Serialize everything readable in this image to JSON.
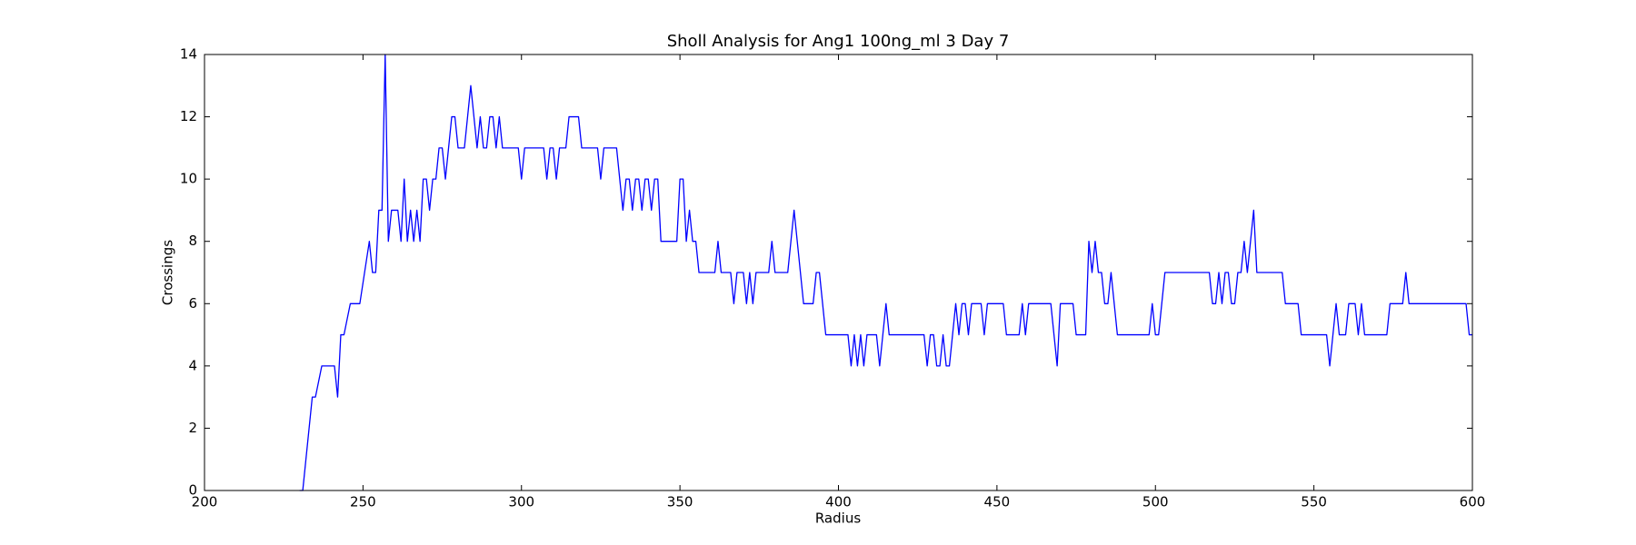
{
  "chart_data": {
    "type": "line",
    "title": "Sholl Analysis for Ang1 100ng_ml 3 Day 7",
    "xlabel": "Radius",
    "ylabel": "Crossings",
    "color": "#0000ff",
    "x": [
      230,
      231,
      234,
      235,
      237,
      241,
      242,
      243,
      244,
      246,
      249,
      252,
      253,
      254,
      255,
      256,
      257,
      258,
      259,
      261,
      262,
      263,
      264,
      265,
      266,
      267,
      268,
      269,
      270,
      271,
      272,
      273,
      274,
      275,
      276,
      277,
      278,
      279,
      280,
      282,
      283,
      284,
      285,
      286,
      287,
      288,
      289,
      290,
      291,
      292,
      293,
      294,
      299,
      300,
      301,
      307,
      308,
      309,
      310,
      311,
      312,
      314,
      315,
      318,
      319,
      324,
      325,
      326,
      330,
      331,
      332,
      333,
      334,
      335,
      336,
      337,
      338,
      339,
      340,
      341,
      342,
      343,
      344,
      349,
      350,
      351,
      352,
      353,
      354,
      355,
      356,
      361,
      362,
      363,
      366,
      367,
      368,
      370,
      371,
      372,
      373,
      374,
      378,
      379,
      380,
      384,
      385,
      386,
      389,
      392,
      393,
      394,
      396,
      403,
      404,
      405,
      406,
      407,
      408,
      409,
      412,
      413,
      414,
      415,
      416,
      427,
      428,
      429,
      430,
      431,
      432,
      433,
      434,
      435,
      436,
      437,
      438,
      439,
      440,
      441,
      442,
      445,
      446,
      447,
      452,
      453,
      457,
      458,
      459,
      460,
      467,
      469,
      470,
      474,
      475,
      478,
      479,
      480,
      481,
      482,
      483,
      484,
      485,
      486,
      488,
      498,
      499,
      500,
      501,
      503,
      517,
      518,
      519,
      520,
      521,
      522,
      523,
      524,
      525,
      526,
      527,
      528,
      529,
      530,
      531,
      532,
      540,
      541,
      545,
      546,
      554,
      555,
      556,
      557,
      558,
      560,
      561,
      563,
      564,
      565,
      566,
      573,
      574,
      578,
      579,
      580,
      598,
      599,
      600
    ],
    "values": [
      0,
      0,
      3,
      3,
      4,
      4,
      3,
      5,
      5,
      6,
      6,
      8,
      7,
      7,
      9,
      9,
      14,
      8,
      9,
      9,
      8,
      10,
      8,
      9,
      8,
      9,
      8,
      10,
      10,
      9,
      10,
      10,
      11,
      11,
      10,
      11,
      12,
      12,
      11,
      11,
      12,
      13,
      12,
      11,
      12,
      11,
      11,
      12,
      12,
      11,
      12,
      11,
      11,
      10,
      11,
      11,
      10,
      11,
      11,
      10,
      11,
      11,
      12,
      12,
      11,
      11,
      10,
      11,
      11,
      10,
      9,
      10,
      10,
      9,
      10,
      10,
      9,
      10,
      10,
      9,
      10,
      10,
      8,
      8,
      10,
      10,
      8,
      9,
      8,
      8,
      7,
      7,
      8,
      7,
      7,
      6,
      7,
      7,
      6,
      7,
      6,
      7,
      7,
      8,
      7,
      7,
      8,
      9,
      6,
      6,
      7,
      7,
      5,
      5,
      4,
      5,
      4,
      5,
      4,
      5,
      5,
      4,
      5,
      6,
      5,
      5,
      4,
      5,
      5,
      4,
      4,
      5,
      4,
      4,
      5,
      6,
      5,
      6,
      6,
      5,
      6,
      6,
      5,
      6,
      6,
      5,
      5,
      6,
      5,
      6,
      6,
      4,
      6,
      6,
      5,
      5,
      8,
      7,
      8,
      7,
      7,
      6,
      6,
      7,
      5,
      5,
      6,
      5,
      5,
      7,
      7,
      6,
      6,
      7,
      6,
      7,
      7,
      6,
      6,
      7,
      7,
      8,
      7,
      8,
      9,
      7,
      7,
      6,
      6,
      5,
      5,
      4,
      5,
      6,
      5,
      5,
      6,
      6,
      5,
      6,
      5,
      5,
      6,
      6,
      7,
      6,
      6,
      5,
      5
    ],
    "xlim": [
      200,
      600
    ],
    "ylim": [
      0,
      14
    ],
    "xticks": [
      200,
      250,
      300,
      350,
      400,
      450,
      500,
      550,
      600
    ],
    "yticks": [
      0,
      2,
      4,
      6,
      8,
      10,
      12,
      14
    ]
  }
}
